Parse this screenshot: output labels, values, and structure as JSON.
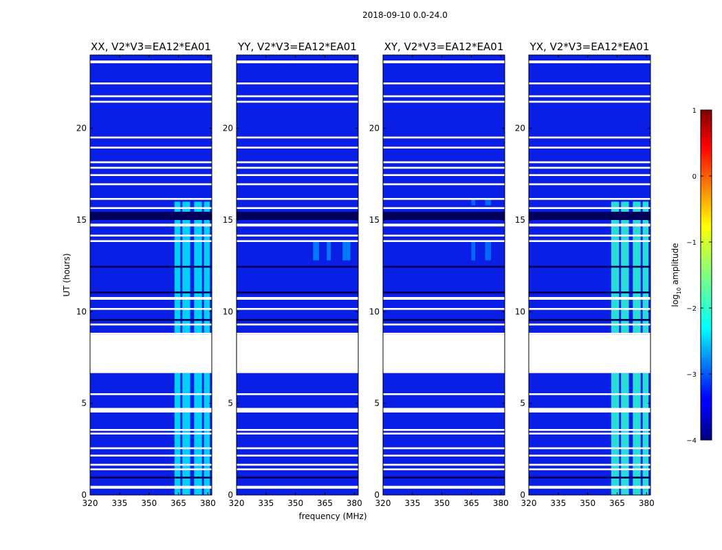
{
  "figure": {
    "suptitle": "2018-09-10 0.0-24.0"
  },
  "colors": {
    "field": "#0a1fe6",
    "gap": "#ffffff",
    "dark": "#00005a"
  },
  "colorbar": {
    "label_prefix": "log",
    "label_sub": "10",
    "label_suffix": " amplitude",
    "ticks": [
      "1",
      "0",
      "−1",
      "−2",
      "−3",
      "−4"
    ],
    "range": [
      -4,
      1
    ]
  },
  "chart_data": {
    "type": "heatmap",
    "xlabel": "frequency (MHz)",
    "ylabel": "UT (hours)",
    "xlim": [
      320,
      382
    ],
    "ylim": [
      0,
      24
    ],
    "xticks": [
      "320",
      "335",
      "350",
      "365",
      "380"
    ],
    "yticks": [
      "0",
      "5",
      "10",
      "15",
      "20"
    ],
    "xtick_values": [
      320,
      335,
      350,
      365,
      380
    ],
    "ytick_values": [
      0,
      5,
      10,
      15,
      20
    ],
    "blank_hours": [
      0.35,
      0.45,
      1.35,
      1.45,
      1.6,
      1.7,
      2.1,
      2.2,
      2.5,
      2.6,
      3.3,
      3.4,
      3.5,
      3.6,
      4.5,
      4.7,
      5.45,
      5.55,
      8.75,
      8.85,
      9.25,
      9.35,
      10.1,
      10.2,
      10.65,
      10.8,
      13.8,
      13.9,
      14.1,
      14.2,
      14.65,
      14.8,
      15.6,
      15.7,
      16.1,
      16.2,
      16.9,
      17.0,
      17.4,
      17.5,
      17.8,
      17.9,
      18.1,
      18.2,
      18.9,
      19.0,
      19.45,
      19.55,
      21.4,
      21.5,
      21.7,
      21.8,
      22.4,
      22.5,
      23.55,
      23.7
    ],
    "blank_bands": [
      [
        6.65,
        8.75
      ],
      [
        0.35,
        0.5
      ],
      [
        4.5,
        4.75
      ]
    ],
    "dark_bands": [
      [
        15.0,
        15.45
      ],
      [
        0.9,
        1.0
      ],
      [
        9.5,
        9.6
      ],
      [
        11.0,
        11.1
      ],
      [
        12.4,
        12.5
      ]
    ],
    "panels": [
      {
        "title": "XX, V2*V3=EA12*EA01",
        "rfi_bands": [
          [
            363,
            366
          ],
          [
            367,
            371
          ],
          [
            373,
            377
          ],
          [
            378,
            381
          ]
        ],
        "rfi_hours": [
          [
            0,
            6.65
          ],
          [
            8.8,
            16.0
          ]
        ],
        "rfi_level": -2.2
      },
      {
        "title": "YY, V2*V3=EA12*EA01",
        "rfi_bands": [
          [
            359,
            362
          ],
          [
            366,
            368
          ],
          [
            374,
            378
          ]
        ],
        "rfi_hours": [
          [
            12.8,
            13.8
          ]
        ],
        "rfi_level": -2.7
      },
      {
        "title": "XY, V2*V3=EA12*EA01",
        "rfi_bands": [
          [
            365,
            367
          ],
          [
            372,
            375
          ]
        ],
        "rfi_hours": [
          [
            12.8,
            13.8
          ],
          [
            15.8,
            16.2
          ]
        ],
        "rfi_level": -2.8
      },
      {
        "title": "YX, V2*V3=EA12*EA01",
        "rfi_bands": [
          [
            362,
            366
          ],
          [
            367,
            371
          ],
          [
            373,
            377
          ],
          [
            378,
            381
          ]
        ],
        "rfi_hours": [
          [
            0,
            6.65
          ],
          [
            8.8,
            16.0
          ]
        ],
        "rfi_level": -1.9
      }
    ]
  }
}
